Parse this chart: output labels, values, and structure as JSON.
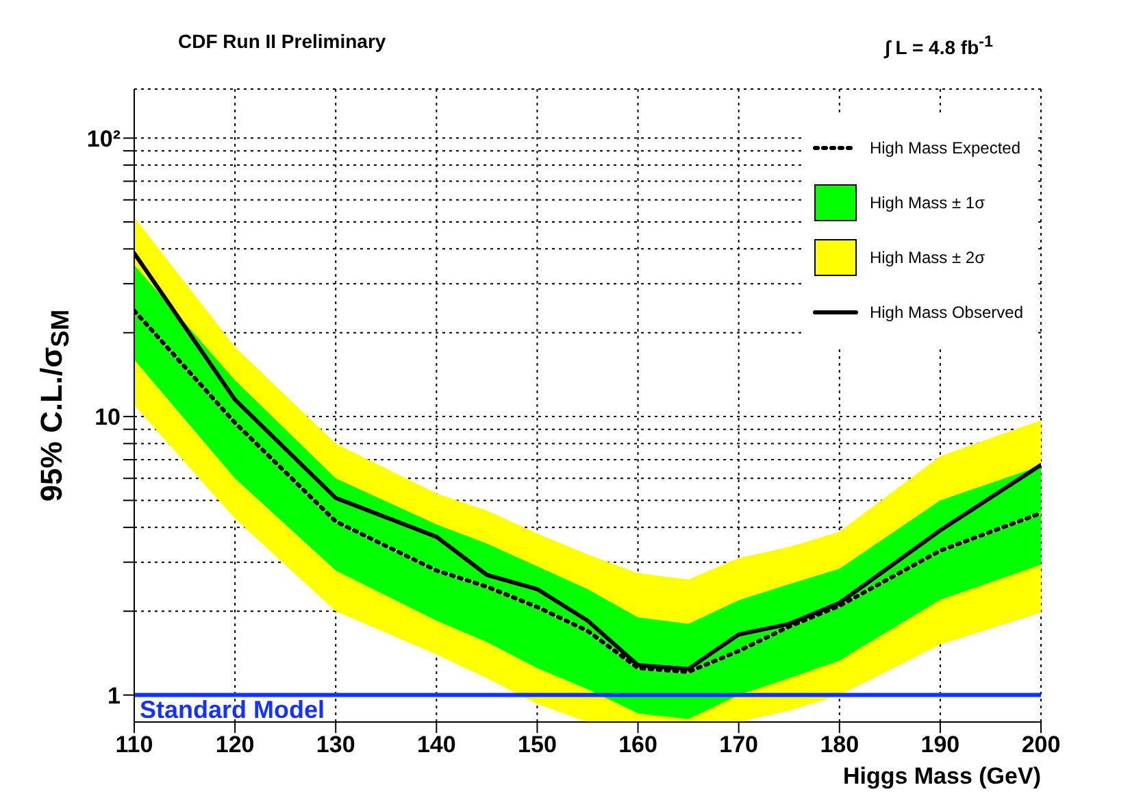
{
  "chart_data": {
    "type": "line",
    "title": "CDF Run II Preliminary",
    "xlabel": "Higgs Mass (GeV)",
    "ylabel": "95% C.L./σ$_{SM}$",
    "annotations": [
      "∫ L = 4.8 fb$^{-1}$"
    ],
    "x": [
      110,
      120,
      130,
      140,
      145,
      150,
      155,
      160,
      165,
      170,
      175,
      180,
      190,
      200
    ],
    "series": [
      {
        "name": "High Mass ± 2σ",
        "color": "#ffff00",
        "lower": [
          11,
          4.3,
          2.0,
          1.4,
          1.15,
          0.93,
          0.8,
          0.8,
          0.8,
          0.8,
          0.88,
          1.0,
          1.52,
          1.98
        ],
        "upper": [
          52,
          17.8,
          8,
          5.3,
          4.6,
          3.8,
          3.2,
          2.74,
          2.6,
          3.1,
          3.4,
          3.86,
          7.2,
          9.7
        ],
        "values": [
          24,
          9.5,
          4.2,
          2.8,
          2.45,
          2.07,
          1.7,
          1.25,
          1.21,
          1.44,
          1.76,
          2.09,
          3.3,
          4.5
        ]
      },
      {
        "name": "High Mass ± 1σ",
        "color": "#00ff00",
        "lower": [
          16,
          6,
          2.8,
          1.85,
          1.55,
          1.25,
          1.05,
          0.86,
          0.82,
          1.0,
          1.15,
          1.33,
          2.2,
          2.94
        ],
        "upper": [
          35,
          13.5,
          6,
          4.1,
          3.5,
          2.9,
          2.4,
          1.9,
          1.8,
          2.19,
          2.5,
          2.84,
          5.0,
          6.65
        ],
        "values": [
          24,
          9.5,
          4.2,
          2.8,
          2.45,
          2.07,
          1.7,
          1.25,
          1.21,
          1.44,
          1.76,
          2.09,
          3.3,
          4.5
        ]
      },
      {
        "name": "High Mass Expected",
        "color": "#000000",
        "line_style": "dotted",
        "values": [
          24,
          9.5,
          4.2,
          2.8,
          2.45,
          2.07,
          1.7,
          1.25,
          1.21,
          1.44,
          1.76,
          2.09,
          3.3,
          4.5
        ]
      },
      {
        "name": "High Mass Observed",
        "color": "#000000",
        "line_style": "solid",
        "values": [
          38.6,
          11.5,
          5.1,
          3.7,
          2.7,
          2.4,
          1.85,
          1.28,
          1.24,
          1.65,
          1.8,
          2.14,
          3.9,
          6.7
        ]
      }
    ],
    "xlim": [
      110,
      200
    ],
    "xticks": [
      110,
      120,
      130,
      140,
      150,
      160,
      170,
      180,
      190,
      200
    ],
    "ylim": [
      0.8,
      150
    ],
    "log": true,
    "yticks": [
      1,
      {
        "value": 2,
        "label": null
      },
      {
        "value": 3,
        "label": null
      },
      {
        "value": 4,
        "label": null
      },
      {
        "value": 5,
        "label": null
      },
      {
        "value": 6,
        "label": null
      },
      {
        "value": 7,
        "label": null
      },
      {
        "value": 8,
        "label": null
      },
      {
        "value": 9,
        "label": null
      },
      10,
      {
        "value": 20,
        "label": null
      },
      {
        "value": 30,
        "label": null
      },
      {
        "value": 40,
        "label": null
      },
      {
        "value": 50,
        "label": null
      },
      {
        "value": 60,
        "label": null
      },
      {
        "value": 70,
        "label": null
      },
      {
        "value": 80,
        "label": null
      },
      {
        "value": 90,
        "label": null
      },
      {
        "value": 100,
        "label": "10²"
      }
    ],
    "ref_lines": [
      {
        "axis": "y",
        "value": 1,
        "label": "Standard Model",
        "color": "#1432ff"
      }
    ],
    "grid": true,
    "legend": "top right",
    "marker": "none"
  }
}
